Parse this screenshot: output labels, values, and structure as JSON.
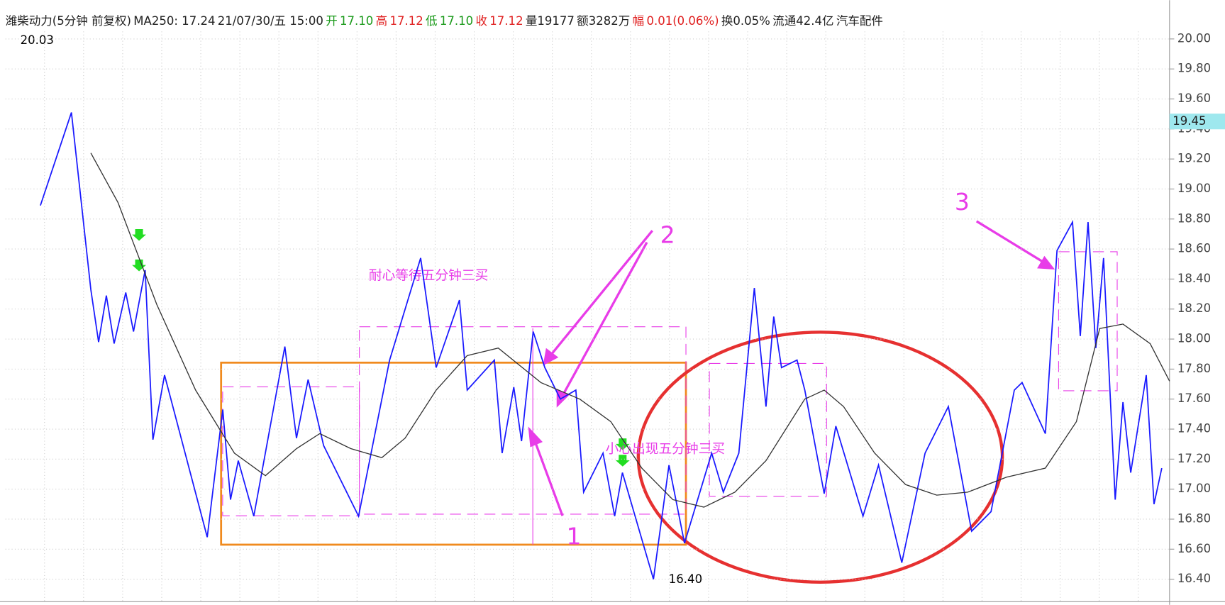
{
  "header": [
    {
      "text": "潍柴动力(5分钟 前复权)",
      "color": "#222"
    },
    {
      "text": "MA250: 17.24",
      "color": "#222"
    },
    {
      "text": "21/07/30/五 15:00",
      "color": "#222"
    },
    {
      "text": "开",
      "color": "#1a9a1a"
    },
    {
      "text": "17.10",
      "color": "#1a9a1a"
    },
    {
      "text": "高",
      "color": "#e02020"
    },
    {
      "text": "17.12",
      "color": "#e02020"
    },
    {
      "text": "低",
      "color": "#1a9a1a"
    },
    {
      "text": "17.10",
      "color": "#1a9a1a"
    },
    {
      "text": "收",
      "color": "#e02020"
    },
    {
      "text": "17.12",
      "color": "#e02020"
    },
    {
      "text": "量19177",
      "color": "#222"
    },
    {
      "text": "额3282万",
      "color": "#222"
    },
    {
      "text": "幅",
      "color": "#e02020"
    },
    {
      "text": "0.01(0.06%)",
      "color": "#e02020"
    },
    {
      "text": "换0.05%",
      "color": "#222"
    },
    {
      "text": "流通42.4亿",
      "color": "#222"
    },
    {
      "text": "汽车配件",
      "color": "#222"
    }
  ],
  "chart_data": {
    "type": "line",
    "annotations": [
      "耐心等待五分钟三买",
      "小心出现五分钟三买",
      "1",
      "2",
      "3"
    ],
    "high_label": "20.03",
    "low_label": "16.40",
    "price_tag": {
      "value": 19.45,
      "label": "19.45"
    },
    "xlim": [
      0,
      300
    ],
    "ylim": [
      16.25,
      20.05
    ],
    "grid": true,
    "yticks": [
      {
        "value": 16.4,
        "label": "16.40"
      },
      {
        "value": 16.6,
        "label": "16.60"
      },
      {
        "value": 16.8,
        "label": "16.80"
      },
      {
        "value": 17,
        "label": "17.00"
      },
      {
        "value": 17.2,
        "label": "17.20"
      },
      {
        "value": 17.4,
        "label": "17.40"
      },
      {
        "value": 17.6,
        "label": "17.60"
      },
      {
        "value": 17.8,
        "label": "17.80"
      },
      {
        "value": 18,
        "label": "18.00"
      },
      {
        "value": 18.2,
        "label": "18.20"
      },
      {
        "value": 18.4,
        "label": "18.40"
      },
      {
        "value": 18.6,
        "label": "18.60"
      },
      {
        "value": 18.8,
        "label": "18.80"
      },
      {
        "value": 19,
        "label": "19.00"
      },
      {
        "value": 19.2,
        "label": "19.20"
      },
      {
        "value": 19.4,
        "label": "19.40"
      },
      {
        "value": 19.6,
        "label": "19.60"
      },
      {
        "value": 19.8,
        "label": "19.80"
      },
      {
        "value": 20,
        "label": "20.00"
      }
    ],
    "series": [
      {
        "color": "#1a1aff",
        "x": [
          9,
          17,
          22,
          24,
          26,
          28,
          31,
          33,
          36,
          38,
          41,
          52,
          56,
          58,
          60,
          64,
          72,
          75,
          78,
          82,
          91,
          95,
          99,
          107,
          111,
          117,
          119,
          126,
          128,
          131,
          133,
          136,
          139,
          143,
          147,
          149,
          154,
          157,
          159,
          167,
          171,
          175,
          182,
          185,
          189,
          193,
          196,
          198,
          200,
          204,
          206,
          211,
          214,
          221,
          225,
          231,
          237,
          243,
          249,
          254,
          260,
          262,
          268,
          271,
          275,
          277,
          279,
          281,
          283,
          286,
          288,
          290,
          294,
          296,
          298
        ],
        "values": [
          18.89,
          19.51,
          18.33,
          17.98,
          18.29,
          17.97,
          18.31,
          18.05,
          18.46,
          17.33,
          17.76,
          16.68,
          17.53,
          16.93,
          17.19,
          16.82,
          17.95,
          17.34,
          17.73,
          17.29,
          16.82,
          17.34,
          17.86,
          18.54,
          17.81,
          18.26,
          17.66,
          17.86,
          17.24,
          17.68,
          17.32,
          18.05,
          17.81,
          17.6,
          17.66,
          16.98,
          17.24,
          16.82,
          17.11,
          16.4,
          17.16,
          16.64,
          17.24,
          16.98,
          17.24,
          18.34,
          17.55,
          18.15,
          17.81,
          17.86,
          17.66,
          16.97,
          17.42,
          16.82,
          17.16,
          16.51,
          17.24,
          17.55,
          16.72,
          16.85,
          17.66,
          17.71,
          17.37,
          18.59,
          18.78,
          18.02,
          18.78,
          17.94,
          18.54,
          16.93,
          17.58,
          17.11,
          17.76,
          16.9,
          17.14
        ]
      },
      {
        "name": "MA250",
        "color": "#333333",
        "x": [
          22,
          29,
          39,
          49,
          59,
          67,
          75,
          81,
          89,
          97,
          103,
          111,
          119,
          127,
          138,
          148,
          156,
          164,
          172,
          180,
          188,
          196,
          206,
          211,
          216,
          224,
          232,
          240,
          248,
          258,
          268,
          276,
          282,
          288,
          295,
          300
        ],
        "values": [
          19.24,
          18.91,
          18.23,
          17.66,
          17.24,
          17.09,
          17.27,
          17.37,
          17.27,
          17.21,
          17.34,
          17.66,
          17.89,
          17.94,
          17.71,
          17.6,
          17.45,
          17.14,
          16.93,
          16.88,
          16.98,
          17.19,
          17.6,
          17.66,
          17.55,
          17.24,
          17.03,
          16.96,
          16.98,
          17.08,
          17.14,
          17.45,
          18.07,
          18.1,
          17.97,
          17.72
        ]
      }
    ]
  }
}
